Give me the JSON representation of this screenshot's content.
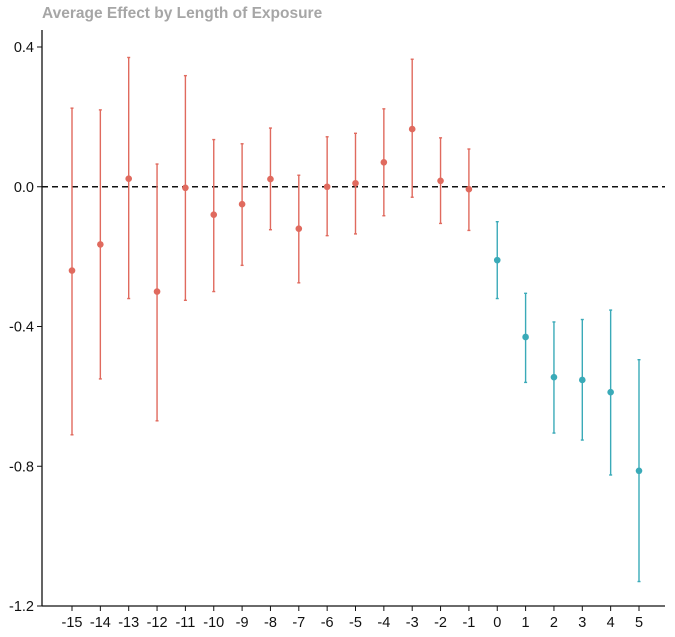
{
  "chart_data": {
    "type": "scatter",
    "title": "Average Effect by Length of Exposure",
    "xlabel": "",
    "ylabel": "",
    "ylim": [
      -1.2,
      0.44
    ],
    "y_ticks": [
      "0.4",
      "0.0",
      "-0.4",
      "-0.8",
      "-1.2"
    ],
    "y_tick_values": [
      0.4,
      0.0,
      -0.4,
      -0.8,
      -1.2
    ],
    "x_ticks": [
      "-15",
      "-14",
      "-13",
      "-12",
      "-11",
      "-10",
      "-9",
      "-8",
      "-7",
      "-6",
      "-5",
      "-4",
      "-3",
      "-2",
      "-1",
      "0",
      "1",
      "2",
      "3",
      "4",
      "5"
    ],
    "reference_line": {
      "y": 0.0,
      "style": "dashed"
    },
    "grid": false,
    "legend": "none",
    "series": [
      {
        "color": "#e06a5e",
        "points": [
          {
            "x": -15,
            "y": -0.24,
            "lower": -0.71,
            "upper": 0.225
          },
          {
            "x": -14,
            "y": -0.165,
            "lower": -0.55,
            "upper": 0.22
          },
          {
            "x": -13,
            "y": 0.023,
            "lower": -0.32,
            "upper": 0.37
          },
          {
            "x": -12,
            "y": -0.3,
            "lower": -0.67,
            "upper": 0.065
          },
          {
            "x": -11,
            "y": -0.003,
            "lower": -0.325,
            "upper": 0.318
          },
          {
            "x": -10,
            "y": -0.08,
            "lower": -0.3,
            "upper": 0.135
          },
          {
            "x": -9,
            "y": -0.05,
            "lower": -0.225,
            "upper": 0.123
          },
          {
            "x": -8,
            "y": 0.022,
            "lower": -0.123,
            "upper": 0.168
          },
          {
            "x": -7,
            "y": -0.12,
            "lower": -0.275,
            "upper": 0.033
          },
          {
            "x": -6,
            "y": 0.0,
            "lower": -0.14,
            "upper": 0.143
          },
          {
            "x": -5,
            "y": 0.01,
            "lower": -0.135,
            "upper": 0.153
          },
          {
            "x": -4,
            "y": 0.07,
            "lower": -0.083,
            "upper": 0.223
          },
          {
            "x": -3,
            "y": 0.165,
            "lower": -0.03,
            "upper": 0.365
          },
          {
            "x": -2,
            "y": 0.017,
            "lower": -0.105,
            "upper": 0.14
          },
          {
            "x": -1,
            "y": -0.007,
            "lower": -0.125,
            "upper": 0.108
          }
        ]
      },
      {
        "color": "#3aaab8",
        "points": [
          {
            "x": 0,
            "y": -0.21,
            "lower": -0.32,
            "upper": -0.1
          },
          {
            "x": 1,
            "y": -0.43,
            "lower": -0.56,
            "upper": -0.305
          },
          {
            "x": 2,
            "y": -0.545,
            "lower": -0.705,
            "upper": -0.387
          },
          {
            "x": 3,
            "y": -0.553,
            "lower": -0.725,
            "upper": -0.38
          },
          {
            "x": 4,
            "y": -0.588,
            "lower": -0.825,
            "upper": -0.353
          },
          {
            "x": 5,
            "y": -0.813,
            "lower": -1.13,
            "upper": -0.495
          }
        ]
      }
    ]
  }
}
